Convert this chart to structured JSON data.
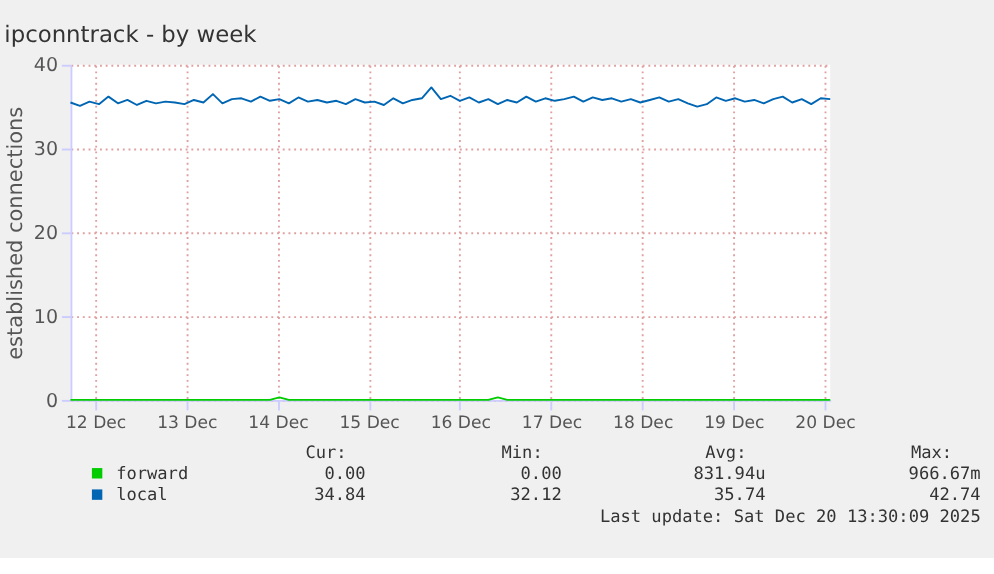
{
  "chart_data": {
    "type": "line",
    "title": "ipconntrack - by week",
    "ylabel": "established connections",
    "x": [
      "2025-12-12T05:30",
      "2025-12-12T08:00",
      "2025-12-12T10:30",
      "2025-12-12T13:00",
      "2025-12-12T15:30",
      "2025-12-12T18:00",
      "2025-12-12T20:30",
      "2025-12-12T23:00",
      "2025-12-13T01:30",
      "2025-12-13T04:00",
      "2025-12-13T06:30",
      "2025-12-13T09:00",
      "2025-12-13T11:30",
      "2025-12-13T14:00",
      "2025-12-13T16:30",
      "2025-12-13T19:00",
      "2025-12-13T21:30",
      "2025-12-14T00:00",
      "2025-12-14T02:30",
      "2025-12-14T05:00",
      "2025-12-14T07:30",
      "2025-12-14T10:00",
      "2025-12-14T12:30",
      "2025-12-14T15:00",
      "2025-12-14T17:30",
      "2025-12-14T20:00",
      "2025-12-14T22:30",
      "2025-12-15T01:00",
      "2025-12-15T03:30",
      "2025-12-15T06:00",
      "2025-12-15T08:30",
      "2025-12-15T11:00",
      "2025-12-15T13:30",
      "2025-12-15T16:00",
      "2025-12-15T18:30",
      "2025-12-15T21:00",
      "2025-12-15T23:30",
      "2025-12-16T02:00",
      "2025-12-16T04:30",
      "2025-12-16T07:00",
      "2025-12-16T09:30",
      "2025-12-16T12:00",
      "2025-12-16T14:30",
      "2025-12-16T17:00",
      "2025-12-16T19:30",
      "2025-12-16T22:00",
      "2025-12-17T00:30",
      "2025-12-17T03:00",
      "2025-12-17T05:30",
      "2025-12-17T08:00",
      "2025-12-17T10:30",
      "2025-12-17T13:00",
      "2025-12-17T15:30",
      "2025-12-17T18:00",
      "2025-12-17T20:30",
      "2025-12-17T23:00",
      "2025-12-18T01:30",
      "2025-12-18T04:00",
      "2025-12-18T06:30",
      "2025-12-18T09:00",
      "2025-12-18T11:30",
      "2025-12-18T14:00",
      "2025-12-18T16:30",
      "2025-12-18T19:00",
      "2025-12-18T21:30",
      "2025-12-19T00:00",
      "2025-12-19T02:30",
      "2025-12-19T05:00",
      "2025-12-19T07:30",
      "2025-12-19T10:00",
      "2025-12-19T12:30",
      "2025-12-19T15:00",
      "2025-12-19T17:30",
      "2025-12-19T20:00",
      "2025-12-19T22:30",
      "2025-12-20T01:00",
      "2025-12-20T03:30",
      "2025-12-20T06:00",
      "2025-12-20T08:30",
      "2025-12-20T11:00",
      "2025-12-20T13:30"
    ],
    "series": [
      {
        "name": "forward",
        "color": "#00cc00",
        "values": [
          0,
          0,
          0,
          0,
          0,
          0,
          0,
          0,
          0,
          0,
          0,
          0,
          0,
          0,
          0,
          0,
          0,
          0,
          0,
          0,
          0,
          0,
          0.3,
          0,
          0,
          0,
          0,
          0,
          0,
          0,
          0,
          0,
          0,
          0,
          0,
          0,
          0,
          0,
          0,
          0,
          0,
          0,
          0,
          0,
          0,
          0.3,
          0,
          0,
          0,
          0,
          0,
          0,
          0,
          0,
          0,
          0,
          0,
          0,
          0,
          0,
          0,
          0,
          0,
          0,
          0,
          0,
          0,
          0,
          0,
          0,
          0,
          0,
          0,
          0,
          0,
          0,
          0,
          0,
          0,
          0,
          0
        ]
      },
      {
        "name": "local",
        "color": "#0066b3",
        "values": [
          35.5,
          35.1,
          35.6,
          35.3,
          36.2,
          35.4,
          35.8,
          35.2,
          35.7,
          35.4,
          35.6,
          35.5,
          35.3,
          35.8,
          35.5,
          36.5,
          35.4,
          35.9,
          36.0,
          35.6,
          36.2,
          35.7,
          35.9,
          35.4,
          36.1,
          35.6,
          35.8,
          35.5,
          35.7,
          35.3,
          35.9,
          35.5,
          35.6,
          35.2,
          36.0,
          35.4,
          35.8,
          36.0,
          37.3,
          35.9,
          36.3,
          35.7,
          36.1,
          35.5,
          35.9,
          35.3,
          35.8,
          35.5,
          36.2,
          35.6,
          36.0,
          35.7,
          35.9,
          36.2,
          35.6,
          36.1,
          35.8,
          36.0,
          35.6,
          35.9,
          35.5,
          35.8,
          36.1,
          35.6,
          35.9,
          35.4,
          35.0,
          35.3,
          36.1,
          35.7,
          36.0,
          35.6,
          35.8,
          35.4,
          35.9,
          36.2,
          35.5,
          35.9,
          35.3,
          36.0,
          35.9
        ]
      }
    ],
    "xlim": [
      "2025-12-12T05:30",
      "2025-12-20T13:30"
    ],
    "xticks": [
      {
        "value": "2025-12-12T12:00",
        "label": "12 Dec"
      },
      {
        "value": "2025-12-13T12:00",
        "label": "13 Dec"
      },
      {
        "value": "2025-12-14T12:00",
        "label": "14 Dec"
      },
      {
        "value": "2025-12-15T12:00",
        "label": "15 Dec"
      },
      {
        "value": "2025-12-16T12:00",
        "label": "16 Dec"
      },
      {
        "value": "2025-12-17T12:00",
        "label": "17 Dec"
      },
      {
        "value": "2025-12-18T12:00",
        "label": "18 Dec"
      },
      {
        "value": "2025-12-19T12:00",
        "label": "19 Dec"
      },
      {
        "value": "2025-12-20T12:00",
        "label": "20 Dec"
      }
    ],
    "ylim": [
      0,
      40
    ],
    "yticks": [
      0,
      10,
      20,
      30,
      40
    ],
    "grid": true,
    "legend": "bottom",
    "annotations": [
      "Cur:",
      "Min:",
      "Avg:",
      "Max:",
      "0.00",
      "0.00",
      "831.94u",
      "966.67m",
      "34.84",
      "32.12",
      "35.74",
      "42.74",
      "Last update: Sat Dec 20 13:30:09 2025"
    ]
  }
}
